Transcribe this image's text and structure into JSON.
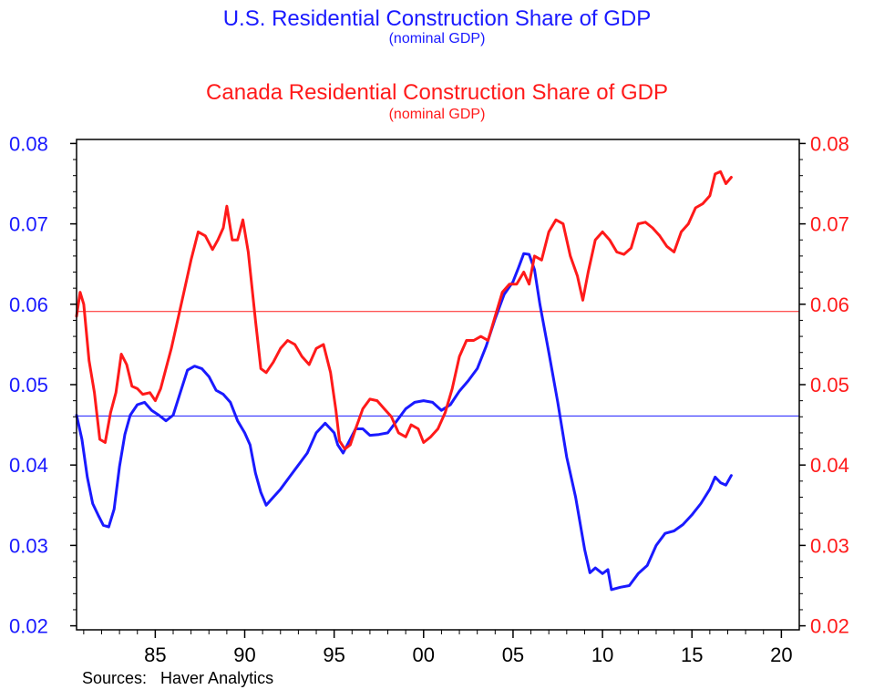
{
  "titles": {
    "us_title": "U.S. Residential Construction Share of GDP",
    "us_subtitle": "(nominal GDP)",
    "ca_title": "Canada Residential Construction Share of GDP",
    "ca_subtitle": "(nominal GDP)"
  },
  "source": "Sources:   Haver Analytics",
  "colors": {
    "us": "#1a1aff",
    "canada": "#ff1a1a"
  },
  "chart_data": {
    "type": "line",
    "title": "U.S. Residential Construction Share of GDP / Canada Residential Construction Share of GDP",
    "xlabel": "",
    "ylabel_left": "",
    "ylabel_right": "",
    "xlim": [
      1980.6,
      2021
    ],
    "ylim": [
      0.0195,
      0.0805
    ],
    "grid": false,
    "x_ticks": [
      {
        "value": 1985,
        "label": "85"
      },
      {
        "value": 1990,
        "label": "90"
      },
      {
        "value": 1995,
        "label": "95"
      },
      {
        "value": 2000,
        "label": "00"
      },
      {
        "value": 2005,
        "label": "05"
      },
      {
        "value": 2010,
        "label": "10"
      },
      {
        "value": 2015,
        "label": "15"
      },
      {
        "value": 2020,
        "label": "20"
      }
    ],
    "y_ticks": [
      "0.02",
      "0.03",
      "0.04",
      "0.05",
      "0.06",
      "0.07",
      "0.08"
    ],
    "reference_lines": [
      {
        "series": "U.S.",
        "value": 0.0461
      },
      {
        "series": "Canada",
        "value": 0.0591
      }
    ],
    "series": [
      {
        "name": "U.S.",
        "axis": "left",
        "points": [
          [
            1980.6,
            0.0462
          ],
          [
            1980.9,
            0.0432
          ],
          [
            1981.2,
            0.0385
          ],
          [
            1981.5,
            0.0352
          ],
          [
            1981.8,
            0.0338
          ],
          [
            1982.1,
            0.0325
          ],
          [
            1982.4,
            0.0323
          ],
          [
            1982.7,
            0.0345
          ],
          [
            1983.0,
            0.0398
          ],
          [
            1983.3,
            0.0438
          ],
          [
            1983.6,
            0.0462
          ],
          [
            1984.0,
            0.0475
          ],
          [
            1984.4,
            0.0478
          ],
          [
            1984.8,
            0.0468
          ],
          [
            1985.2,
            0.0462
          ],
          [
            1985.6,
            0.0455
          ],
          [
            1986.0,
            0.0462
          ],
          [
            1986.4,
            0.049
          ],
          [
            1986.8,
            0.0518
          ],
          [
            1987.2,
            0.0523
          ],
          [
            1987.6,
            0.052
          ],
          [
            1988.0,
            0.051
          ],
          [
            1988.4,
            0.0493
          ],
          [
            1988.8,
            0.0488
          ],
          [
            1989.2,
            0.0478
          ],
          [
            1989.6,
            0.0455
          ],
          [
            1990.0,
            0.044
          ],
          [
            1990.3,
            0.0425
          ],
          [
            1990.6,
            0.039
          ],
          [
            1990.9,
            0.0366
          ],
          [
            1991.2,
            0.035
          ],
          [
            1991.6,
            0.036
          ],
          [
            1992.0,
            0.037
          ],
          [
            1992.5,
            0.0385
          ],
          [
            1993.0,
            0.04
          ],
          [
            1993.5,
            0.0415
          ],
          [
            1994.0,
            0.044
          ],
          [
            1994.5,
            0.0452
          ],
          [
            1995.0,
            0.044
          ],
          [
            1995.2,
            0.0425
          ],
          [
            1995.5,
            0.0415
          ],
          [
            1995.8,
            0.0428
          ],
          [
            1996.2,
            0.0445
          ],
          [
            1996.6,
            0.0445
          ],
          [
            1997.0,
            0.0437
          ],
          [
            1997.5,
            0.0438
          ],
          [
            1998.0,
            0.044
          ],
          [
            1998.5,
            0.0455
          ],
          [
            1999.0,
            0.047
          ],
          [
            1999.5,
            0.0478
          ],
          [
            2000.0,
            0.048
          ],
          [
            2000.5,
            0.0478
          ],
          [
            2001.0,
            0.0468
          ],
          [
            2001.5,
            0.0475
          ],
          [
            2002.0,
            0.0492
          ],
          [
            2002.5,
            0.0505
          ],
          [
            2003.0,
            0.052
          ],
          [
            2003.5,
            0.0548
          ],
          [
            2004.0,
            0.0582
          ],
          [
            2004.5,
            0.0612
          ],
          [
            2005.0,
            0.0628
          ],
          [
            2005.3,
            0.0645
          ],
          [
            2005.6,
            0.0663
          ],
          [
            2005.9,
            0.0662
          ],
          [
            2006.2,
            0.0643
          ],
          [
            2006.5,
            0.06
          ],
          [
            2007.0,
            0.054
          ],
          [
            2007.5,
            0.0478
          ],
          [
            2008.0,
            0.041
          ],
          [
            2008.5,
            0.036
          ],
          [
            2009.0,
            0.0295
          ],
          [
            2009.3,
            0.0266
          ],
          [
            2009.6,
            0.0272
          ],
          [
            2010.0,
            0.0265
          ],
          [
            2010.3,
            0.027
          ],
          [
            2010.5,
            0.0245
          ],
          [
            2011.0,
            0.0248
          ],
          [
            2011.5,
            0.025
          ],
          [
            2012.0,
            0.0265
          ],
          [
            2012.5,
            0.0275
          ],
          [
            2013.0,
            0.03
          ],
          [
            2013.5,
            0.0315
          ],
          [
            2014.0,
            0.0318
          ],
          [
            2014.5,
            0.0326
          ],
          [
            2015.0,
            0.0338
          ],
          [
            2015.5,
            0.0352
          ],
          [
            2016.0,
            0.037
          ],
          [
            2016.3,
            0.0385
          ],
          [
            2016.6,
            0.0378
          ],
          [
            2016.9,
            0.0375
          ],
          [
            2017.2,
            0.0387
          ]
        ]
      },
      {
        "name": "Canada",
        "axis": "right",
        "points": [
          [
            1980.6,
            0.0585
          ],
          [
            1980.8,
            0.0615
          ],
          [
            1981.0,
            0.06
          ],
          [
            1981.3,
            0.053
          ],
          [
            1981.6,
            0.049
          ],
          [
            1981.9,
            0.0432
          ],
          [
            1982.2,
            0.0428
          ],
          [
            1982.5,
            0.0465
          ],
          [
            1982.8,
            0.049
          ],
          [
            1983.1,
            0.0538
          ],
          [
            1983.4,
            0.0525
          ],
          [
            1983.7,
            0.0498
          ],
          [
            1984.0,
            0.0495
          ],
          [
            1984.3,
            0.0488
          ],
          [
            1984.7,
            0.049
          ],
          [
            1985.0,
            0.048
          ],
          [
            1985.3,
            0.0495
          ],
          [
            1985.6,
            0.052
          ],
          [
            1985.9,
            0.0545
          ],
          [
            1986.2,
            0.0575
          ],
          [
            1986.6,
            0.0615
          ],
          [
            1987.0,
            0.0655
          ],
          [
            1987.4,
            0.069
          ],
          [
            1987.8,
            0.0685
          ],
          [
            1988.2,
            0.0668
          ],
          [
            1988.5,
            0.068
          ],
          [
            1988.8,
            0.0695
          ],
          [
            1989.0,
            0.0722
          ],
          [
            1989.3,
            0.068
          ],
          [
            1989.6,
            0.068
          ],
          [
            1989.9,
            0.0705
          ],
          [
            1990.2,
            0.0665
          ],
          [
            1990.6,
            0.058
          ],
          [
            1990.9,
            0.052
          ],
          [
            1991.2,
            0.0515
          ],
          [
            1991.6,
            0.0528
          ],
          [
            1992.0,
            0.0545
          ],
          [
            1992.4,
            0.0555
          ],
          [
            1992.8,
            0.055
          ],
          [
            1993.2,
            0.0535
          ],
          [
            1993.6,
            0.0525
          ],
          [
            1994.0,
            0.0545
          ],
          [
            1994.4,
            0.055
          ],
          [
            1994.8,
            0.0515
          ],
          [
            1995.1,
            0.0468
          ],
          [
            1995.3,
            0.043
          ],
          [
            1995.6,
            0.042
          ],
          [
            1995.9,
            0.0425
          ],
          [
            1996.2,
            0.0445
          ],
          [
            1996.6,
            0.047
          ],
          [
            1997.0,
            0.0482
          ],
          [
            1997.4,
            0.048
          ],
          [
            1997.8,
            0.047
          ],
          [
            1998.2,
            0.046
          ],
          [
            1998.6,
            0.044
          ],
          [
            1999.0,
            0.0435
          ],
          [
            1999.3,
            0.045
          ],
          [
            1999.7,
            0.0445
          ],
          [
            2000.0,
            0.0428
          ],
          [
            2000.4,
            0.0435
          ],
          [
            2000.8,
            0.0445
          ],
          [
            2001.2,
            0.0465
          ],
          [
            2001.6,
            0.0495
          ],
          [
            2002.0,
            0.0535
          ],
          [
            2002.4,
            0.0555
          ],
          [
            2002.8,
            0.0555
          ],
          [
            2003.2,
            0.056
          ],
          [
            2003.6,
            0.0555
          ],
          [
            2004.0,
            0.0585
          ],
          [
            2004.4,
            0.0615
          ],
          [
            2004.8,
            0.0625
          ],
          [
            2005.2,
            0.0625
          ],
          [
            2005.6,
            0.064
          ],
          [
            2005.9,
            0.0625
          ],
          [
            2006.2,
            0.066
          ],
          [
            2006.6,
            0.0655
          ],
          [
            2007.0,
            0.069
          ],
          [
            2007.4,
            0.0705
          ],
          [
            2007.8,
            0.07
          ],
          [
            2008.2,
            0.066
          ],
          [
            2008.6,
            0.0635
          ],
          [
            2008.9,
            0.0605
          ],
          [
            2009.2,
            0.064
          ],
          [
            2009.6,
            0.068
          ],
          [
            2010.0,
            0.069
          ],
          [
            2010.4,
            0.068
          ],
          [
            2010.8,
            0.0665
          ],
          [
            2011.2,
            0.0662
          ],
          [
            2011.6,
            0.067
          ],
          [
            2012.0,
            0.07
          ],
          [
            2012.4,
            0.0702
          ],
          [
            2012.8,
            0.0695
          ],
          [
            2013.2,
            0.0685
          ],
          [
            2013.6,
            0.0672
          ],
          [
            2014.0,
            0.0665
          ],
          [
            2014.4,
            0.069
          ],
          [
            2014.8,
            0.07
          ],
          [
            2015.2,
            0.072
          ],
          [
            2015.6,
            0.0725
          ],
          [
            2016.0,
            0.0735
          ],
          [
            2016.3,
            0.0762
          ],
          [
            2016.6,
            0.0765
          ],
          [
            2016.9,
            0.075
          ],
          [
            2017.2,
            0.0758
          ]
        ]
      }
    ]
  }
}
